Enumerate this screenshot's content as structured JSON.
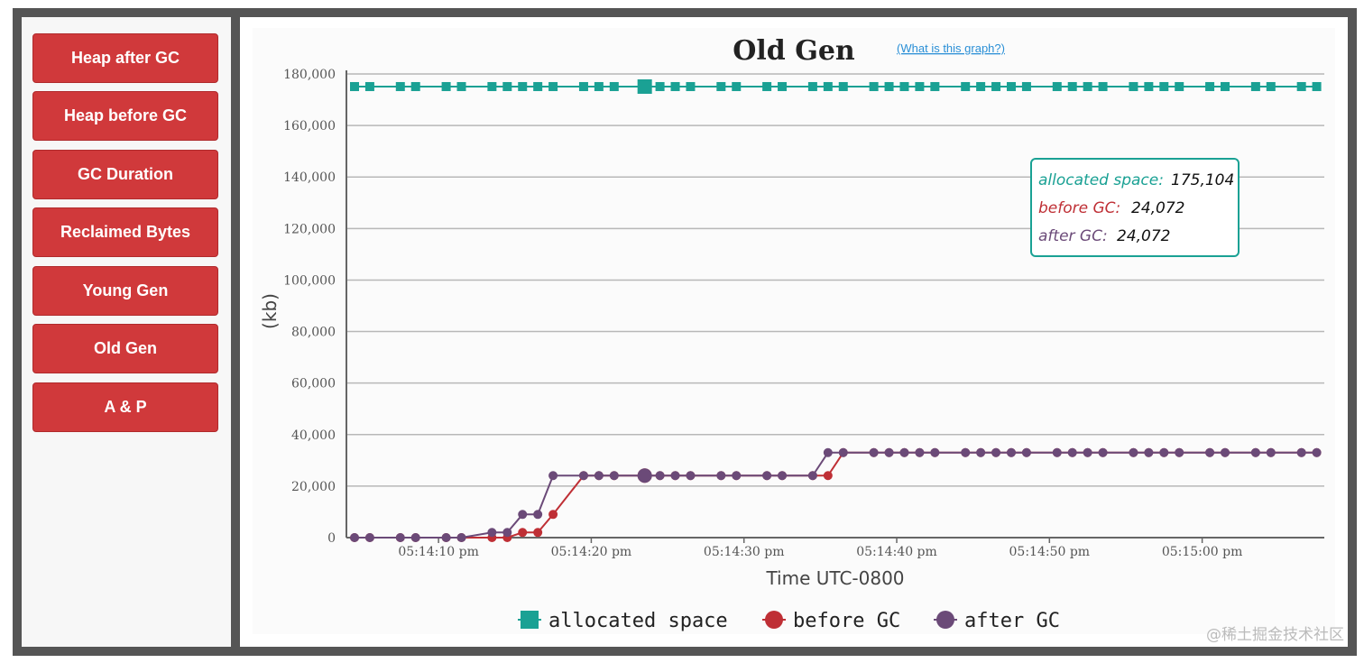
{
  "sidebar": {
    "buttons": [
      {
        "label": "Heap after GC"
      },
      {
        "label": "Heap before GC"
      },
      {
        "label": "GC Duration"
      },
      {
        "label": "Reclaimed Bytes"
      },
      {
        "label": "Young Gen"
      },
      {
        "label": "Old Gen"
      },
      {
        "label": "A & P"
      }
    ]
  },
  "chart": {
    "title": "Old Gen",
    "help_link": "(What is this graph?)",
    "watermark": "@稀土掘金技术社区",
    "tooltip": {
      "rows": [
        {
          "label": "allocated space:",
          "value": "175,104"
        },
        {
          "label": "before GC:",
          "value": "24,072"
        },
        {
          "label": "after GC:",
          "value": "24,072"
        }
      ]
    },
    "colors": {
      "allocated": "#1aa194",
      "before": "#bf2f35",
      "after": "#6b4a78",
      "button": "#d0393b"
    }
  },
  "chart_data": {
    "type": "line",
    "title": "Old Gen",
    "xlabel": "Time UTC-0800",
    "ylabel": "(kb)",
    "x_tick_labels": [
      "05:14:10 pm",
      "05:14:20 pm",
      "05:14:30 pm",
      "05:14:40 pm",
      "05:14:50 pm",
      "05:15:00 pm"
    ],
    "y_tick_labels": [
      "0",
      "20,000",
      "40,000",
      "60,000",
      "80,000",
      "100,000",
      "120,000",
      "140,000",
      "160,000",
      "180,000"
    ],
    "ylim": [
      0,
      180000
    ],
    "grid": true,
    "legend_position": "bottom",
    "x_unit": "seconds after 05:14:00 pm",
    "x": [
      4.5,
      5.5,
      7.5,
      8.5,
      10.5,
      11.5,
      13.5,
      14.5,
      15.5,
      16.5,
      17.5,
      19.5,
      20.5,
      21.5,
      23.5,
      24.5,
      25.5,
      26.5,
      28.5,
      29.5,
      31.5,
      32.5,
      34.5,
      35.5,
      36.5,
      38.5,
      39.5,
      40.5,
      41.5,
      42.5,
      44.5,
      45.5,
      46.5,
      47.5,
      48.5,
      50.5,
      51.5,
      52.5,
      53.5,
      55.5,
      56.5,
      57.5,
      58.5,
      60.5,
      61.5,
      63.5,
      64.5,
      66.5,
      67.5
    ],
    "series": [
      {
        "name": "allocated space",
        "marker": "square",
        "values": [
          175104,
          175104,
          175104,
          175104,
          175104,
          175104,
          175104,
          175104,
          175104,
          175104,
          175104,
          175104,
          175104,
          175104,
          175104,
          175104,
          175104,
          175104,
          175104,
          175104,
          175104,
          175104,
          175104,
          175104,
          175104,
          175104,
          175104,
          175104,
          175104,
          175104,
          175104,
          175104,
          175104,
          175104,
          175104,
          175104,
          175104,
          175104,
          175104,
          175104,
          175104,
          175104,
          175104,
          175104,
          175104,
          175104,
          175104,
          175104,
          175104
        ]
      },
      {
        "name": "before GC",
        "marker": "circle",
        "values": [
          0,
          0,
          0,
          0,
          0,
          0,
          0,
          0,
          2000,
          2000,
          9000,
          24072,
          24072,
          24072,
          24072,
          24072,
          24072,
          24072,
          24072,
          24072,
          24072,
          24072,
          24072,
          24072,
          33000,
          33000,
          33000,
          33000,
          33000,
          33000,
          33000,
          33000,
          33000,
          33000,
          33000,
          33000,
          33000,
          33000,
          33000,
          33000,
          33000,
          33000,
          33000,
          33000,
          33000,
          33000,
          33000,
          33000,
          33000
        ]
      },
      {
        "name": "after GC",
        "marker": "circle",
        "values": [
          0,
          0,
          0,
          0,
          0,
          0,
          2000,
          2000,
          9000,
          9000,
          24072,
          24072,
          24072,
          24072,
          24072,
          24072,
          24072,
          24072,
          24072,
          24072,
          24072,
          24072,
          24072,
          33000,
          33000,
          33000,
          33000,
          33000,
          33000,
          33000,
          33000,
          33000,
          33000,
          33000,
          33000,
          33000,
          33000,
          33000,
          33000,
          33000,
          33000,
          33000,
          33000,
          33000,
          33000,
          33000,
          33000,
          33000,
          33000
        ]
      }
    ],
    "highlight_index": 14
  }
}
